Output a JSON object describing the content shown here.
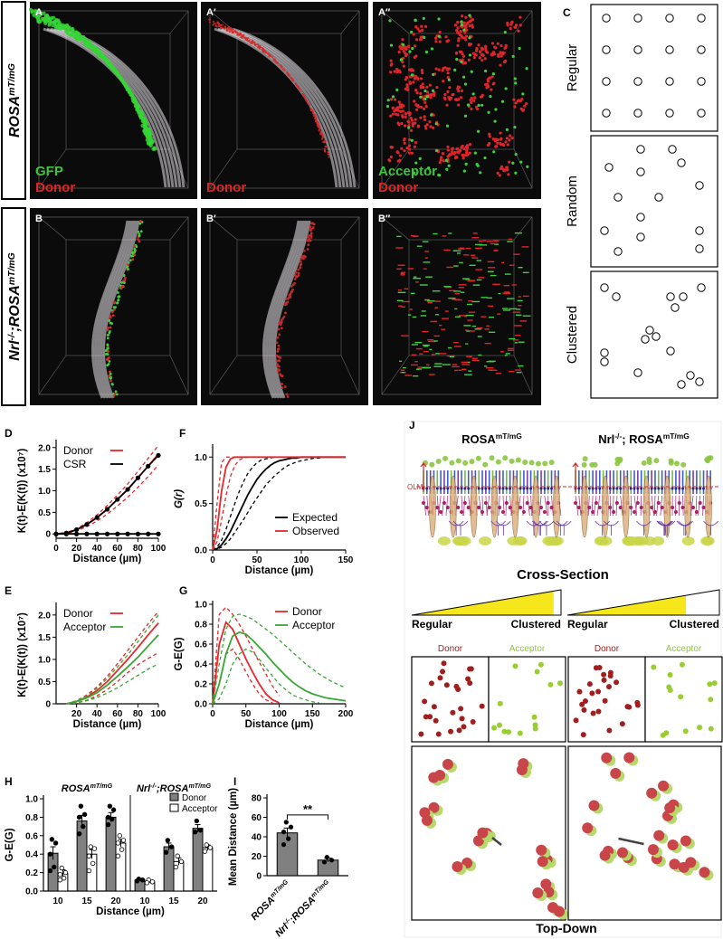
{
  "rows": [
    [
      {
        "text": "ROSA"
      },
      {
        "text": "mT/mG",
        "sup": true
      }
    ],
    [
      {
        "text": "Nrl"
      },
      {
        "text": "-/-",
        "sup": true
      },
      {
        "text": ";ROSA"
      },
      {
        "text": "mT/mG",
        "sup": true
      }
    ]
  ],
  "images": [
    {
      "label": "A",
      "texts": [
        {
          "text": "GFP",
          "color": "#3fc43f"
        },
        {
          "text": "Donor",
          "color": "#e02424"
        }
      ]
    },
    {
      "label": "A′",
      "texts": [
        {
          "text": "Donor",
          "color": "#e02424"
        }
      ]
    },
    {
      "label": "A″",
      "texts": [
        {
          "text": "Acceptor",
          "color": "#3fc43f"
        },
        {
          "text": "Donor",
          "color": "#e02424"
        }
      ]
    },
    {
      "label": "B",
      "texts": []
    },
    {
      "label": "B′",
      "texts": []
    },
    {
      "label": "B″",
      "texts": []
    }
  ],
  "patterns": {
    "label": "C",
    "names": [
      "Regular",
      "Random",
      "Clustered"
    ]
  },
  "chart_data": [
    {
      "type": "line",
      "label": "D",
      "xlabel": "Distance (µm)",
      "ylabel": "K(t)-E(K(t)) (x10⁷)",
      "x": [
        0,
        10,
        20,
        30,
        40,
        50,
        60,
        70,
        80,
        90,
        100
      ],
      "xlim": [
        0,
        100
      ],
      "xticks": [
        0,
        20,
        40,
        60,
        80,
        100
      ],
      "ylim": [
        -0.1,
        2.1
      ],
      "yticks": [
        0,
        0.5,
        {
          "value": 1,
          "label": "1.0"
        },
        1.5,
        {
          "value": 2,
          "label": "2.0"
        }
      ],
      "legend": "upper left",
      "series": [
        {
          "name": "Donor",
          "color": "#e8262b",
          "values": [
            0,
            0.02,
            0.1,
            0.22,
            0.38,
            0.57,
            0.8,
            1.03,
            1.3,
            1.57,
            1.85
          ]
        },
        {
          "color": "#e8262b",
          "dash": true,
          "values": [
            0,
            0.03,
            0.12,
            0.26,
            0.44,
            0.66,
            0.9,
            1.16,
            1.45,
            1.75,
            2.05
          ]
        },
        {
          "color": "#e8262b",
          "dash": true,
          "values": [
            0,
            0.01,
            0.07,
            0.17,
            0.3,
            0.46,
            0.65,
            0.85,
            1.08,
            1.33,
            1.6
          ]
        },
        {
          "name": "CSR",
          "color": "#000000",
          "markers": true,
          "values": [
            0,
            0,
            0,
            0,
            0,
            0,
            0,
            0,
            0,
            0,
            0
          ]
        },
        {
          "color": "#000000",
          "markers": true,
          "values": [
            0,
            0.02,
            0.1,
            0.22,
            0.38,
            0.57,
            0.8,
            1.03,
            1.3,
            1.57,
            1.82
          ]
        }
      ]
    },
    {
      "type": "line",
      "label": "F",
      "xlabel": "Distance (µm)",
      "ylabel": "G(r)",
      "x": [
        0,
        5,
        10,
        15,
        20,
        25,
        30,
        35,
        40,
        45,
        50,
        55,
        60,
        65,
        70,
        75,
        80,
        85,
        90,
        95,
        100,
        105,
        110,
        115,
        120,
        125,
        130,
        135,
        140,
        145,
        150
      ],
      "xlim": [
        0,
        150
      ],
      "xticks": [
        0,
        50,
        100,
        150
      ],
      "ylim": [
        0,
        1.1
      ],
      "yticks": [
        {
          "value": 0,
          "label": "0.0"
        },
        0.5,
        {
          "value": 1,
          "label": "1.0"
        }
      ],
      "legend": "lower right",
      "series": [
        {
          "name": "Expected",
          "color": "#000000",
          "values": [
            0,
            0.014,
            0.055,
            0.12,
            0.2,
            0.3,
            0.4,
            0.5,
            0.6,
            0.68,
            0.76,
            0.82,
            0.87,
            0.91,
            0.94,
            0.96,
            0.97,
            0.98,
            0.99,
            0.99,
            1,
            1,
            1,
            1,
            1,
            1,
            1,
            1,
            1,
            1,
            1
          ]
        },
        {
          "color": "#000000",
          "dash": true,
          "values": [
            0,
            0.03,
            0.105,
            0.22,
            0.36,
            0.5,
            0.63,
            0.74,
            0.83,
            0.89,
            0.94,
            0.97,
            0.98,
            0.99,
            1,
            1,
            1,
            1,
            1,
            1,
            1,
            1,
            1,
            1,
            1,
            1,
            1,
            1,
            1,
            1,
            1
          ]
        },
        {
          "color": "#000000",
          "dash": true,
          "values": [
            0,
            0.008,
            0.03,
            0.07,
            0.12,
            0.19,
            0.26,
            0.33,
            0.41,
            0.49,
            0.56,
            0.63,
            0.7,
            0.75,
            0.8,
            0.84,
            0.88,
            0.91,
            0.93,
            0.95,
            0.96,
            0.97,
            0.98,
            0.99,
            0.99,
            1,
            1,
            1,
            1,
            1,
            1
          ]
        },
        {
          "name": "Observed",
          "color": "#e8262b",
          "values": [
            0,
            0.22,
            0.63,
            0.89,
            0.98,
            1,
            1,
            1,
            1,
            1,
            1,
            1,
            1,
            1,
            1,
            1,
            1,
            1,
            1,
            1,
            1,
            1,
            1,
            1,
            1,
            1,
            1,
            1,
            1,
            1,
            1
          ]
        },
        {
          "color": "#e8262b",
          "dash": true,
          "values": [
            0,
            0.5,
            0.94,
            1,
            1,
            1,
            1,
            1,
            1,
            1,
            1,
            1,
            1,
            1,
            1,
            1,
            1,
            1,
            1,
            1,
            1,
            1,
            1,
            1,
            1,
            1,
            1,
            1,
            1,
            1,
            1
          ]
        },
        {
          "color": "#e8262b",
          "dash": true,
          "values": [
            0,
            0.09,
            0.32,
            0.58,
            0.79,
            0.91,
            0.97,
            0.99,
            1,
            1,
            1,
            1,
            1,
            1,
            1,
            1,
            1,
            1,
            1,
            1,
            1,
            1,
            1,
            1,
            1,
            1,
            1,
            1,
            1,
            1,
            1
          ]
        }
      ]
    },
    {
      "type": "line",
      "label": "E",
      "xlabel": "Distance (µm)",
      "ylabel": "K(t)-E(K(t)) (x10⁷)",
      "x": [
        10,
        20,
        30,
        40,
        50,
        60,
        70,
        80,
        90,
        100
      ],
      "xlim": [
        0,
        100
      ],
      "xticks": [
        20,
        40,
        60,
        80,
        100
      ],
      "ylim": [
        0,
        2.2
      ],
      "yticks": [
        0,
        0.5,
        {
          "value": 1,
          "label": "1.0"
        },
        1.5,
        {
          "value": 2,
          "label": "2.0"
        }
      ],
      "legend": "upper left",
      "series": [
        {
          "name": "Donor",
          "color": "#e8262b",
          "values": [
            0,
            0.05,
            0.15,
            0.3,
            0.5,
            0.75,
            1.0,
            1.27,
            1.55,
            1.82
          ]
        },
        {
          "color": "#e8262b",
          "dash": true,
          "values": [
            0,
            0.07,
            0.2,
            0.38,
            0.62,
            0.9,
            1.2,
            1.5,
            1.8,
            2.08
          ]
        },
        {
          "color": "#e8262b",
          "dash": true,
          "values": [
            0,
            0.02,
            0.08,
            0.18,
            0.32,
            0.5,
            0.7,
            0.88,
            1.02,
            1.15
          ]
        },
        {
          "name": "Acceptor",
          "color": "#3aa635",
          "values": [
            0,
            0.05,
            0.13,
            0.25,
            0.42,
            0.62,
            0.83,
            1.05,
            1.3,
            1.55
          ]
        },
        {
          "color": "#3aa635",
          "dash": true,
          "values": [
            0,
            0.07,
            0.18,
            0.35,
            0.57,
            0.83,
            1.1,
            1.4,
            1.7,
            2.0
          ]
        },
        {
          "color": "#3aa635",
          "dash": true,
          "values": [
            0,
            0.02,
            0.07,
            0.14,
            0.24,
            0.36,
            0.5,
            0.64,
            0.78,
            0.9
          ]
        }
      ]
    },
    {
      "type": "line",
      "label": "G",
      "xlabel": "Distance (µm)",
      "ylabel": "G-E(G)",
      "x": [
        0,
        10,
        20,
        30,
        40,
        50,
        60,
        70,
        80,
        90,
        100,
        110,
        120,
        130,
        140,
        150,
        160,
        170,
        180,
        190,
        200
      ],
      "xlim": [
        0,
        200
      ],
      "xticks": [
        0,
        50,
        100,
        150,
        200
      ],
      "ylim": [
        0,
        1
      ],
      "yticks": [
        {
          "value": 0,
          "label": "0.0"
        },
        0.2,
        0.4,
        0.6,
        0.8,
        {
          "value": 1,
          "label": "1.0"
        }
      ],
      "legend": "upper right",
      "series": [
        {
          "name": "Donor",
          "color": "#e8262b",
          "values": [
            0,
            0.6,
            0.82,
            0.75,
            0.6,
            0.45,
            0.32,
            0.2,
            0.1,
            0.04,
            0.01,
            null,
            null,
            null,
            null,
            null,
            null,
            null,
            null,
            null,
            null
          ]
        },
        {
          "color": "#e8262b",
          "dash": true,
          "values": [
            0,
            0.9,
            0.97,
            0.9,
            0.8,
            0.68,
            0.55,
            0.42,
            0.3,
            0.18,
            0.08,
            null,
            null,
            null,
            null,
            null,
            null,
            null,
            null,
            null,
            null
          ]
        },
        {
          "color": "#e8262b",
          "dash": true,
          "values": [
            0,
            0.2,
            0.5,
            0.55,
            0.45,
            0.32,
            0.2,
            0.1,
            0.04,
            0.01,
            null,
            null,
            null,
            null,
            null,
            null,
            null,
            null,
            null,
            null,
            null
          ]
        },
        {
          "name": "Acceptor",
          "color": "#3aa635",
          "values": [
            0,
            0.2,
            0.5,
            0.68,
            0.72,
            0.7,
            0.64,
            0.57,
            0.5,
            0.42,
            0.35,
            0.28,
            0.22,
            0.17,
            0.13,
            0.1,
            0.08,
            0.06,
            0.05,
            0.04,
            0.03
          ]
        },
        {
          "color": "#3aa635",
          "dash": true,
          "values": [
            0,
            0.4,
            0.75,
            0.88,
            0.9,
            0.88,
            0.85,
            0.8,
            0.75,
            0.7,
            0.64,
            0.58,
            0.52,
            0.46,
            0.4,
            0.35,
            0.3,
            0.26,
            0.22,
            0.19,
            0.16
          ]
        },
        {
          "color": "#3aa635",
          "dash": true,
          "values": [
            0,
            0.05,
            0.2,
            0.4,
            0.5,
            0.55,
            0.52,
            0.45,
            0.36,
            0.28,
            0.2,
            0.14,
            0.09,
            0.06,
            0.04,
            0.02,
            0.01,
            null,
            null,
            null,
            null
          ]
        }
      ]
    },
    {
      "type": "grouped_bar",
      "label": "H",
      "xlabel": "Distance (µm)",
      "ylabel": "G-E(G)",
      "groups": [
        {
          "label": [
            {
              "text": "ROSA"
            },
            {
              "text": "mT/mG",
              "sup": true
            }
          ],
          "categories": [
            "10",
            "15",
            "20"
          ]
        },
        {
          "label": [
            {
              "text": "Nrl"
            },
            {
              "text": "-/-",
              "sup": true
            },
            {
              "text": ";ROSA"
            },
            {
              "text": "mT/mG",
              "sup": true
            }
          ],
          "categories": [
            "10",
            "15",
            "20"
          ]
        }
      ],
      "ylim": [
        0,
        1
      ],
      "yticks": [
        {
          "value": 0,
          "label": "0.0"
        },
        0.2,
        0.4,
        0.6,
        0.8,
        {
          "value": 1,
          "label": "1.0"
        }
      ],
      "legend": "upper right",
      "series": [
        {
          "name": "Donor",
          "color": "#808080",
          "values": [
            0.41,
            0.76,
            0.8,
            0.12,
            0.48,
            0.68
          ],
          "errors": [
            0.07,
            0.06,
            0.05,
            0.01,
            0.04,
            0.04
          ],
          "points": [
            [
              0.56,
              0.52,
              0.4,
              0.26,
              0.22
            ],
            [
              0.92,
              0.83,
              0.8,
              0.7,
              0.62
            ],
            [
              0.92,
              0.88,
              0.8,
              0.78,
              0.72
            ],
            [
              0.13,
              0.12,
              0.11
            ],
            [
              0.55,
              0.48,
              0.42
            ],
            [
              0.76,
              0.66,
              0.64
            ]
          ]
        },
        {
          "name": "Acceptor",
          "color": "#ffffff",
          "values": [
            0.19,
            0.4,
            0.52,
            0.1,
            0.32,
            0.47
          ],
          "errors": [
            0.04,
            0.05,
            0.04,
            0.01,
            0.04,
            0.03
          ],
          "points": [
            [
              0.25,
              0.2,
              0.18,
              0.14,
              0.12
            ],
            [
              0.48,
              0.46,
              0.38,
              0.3,
              0.22
            ],
            [
              0.6,
              0.55,
              0.52,
              0.45,
              0.38
            ],
            [
              0.12,
              0.1,
              0.09
            ],
            [
              0.38,
              0.32,
              0.26
            ],
            [
              0.5,
              0.47,
              0.43
            ]
          ]
        }
      ]
    },
    {
      "type": "bar",
      "label": "I",
      "ylabel": "Mean Distance (µm)",
      "annotation": "**",
      "categories": [
        [
          {
            "text": "ROSA"
          },
          {
            "text": "mT/mG",
            "sup": true
          }
        ],
        [
          {
            "text": "Nrl"
          },
          {
            "text": "-/-",
            "sup": true
          },
          {
            "text": ";ROSA"
          },
          {
            "text": "mT/mG",
            "sup": true
          }
        ]
      ],
      "ylim": [
        0,
        80
      ],
      "yticks": [
        0,
        20,
        40,
        60,
        80
      ],
      "series": [
        {
          "color": "#808080",
          "values": [
            44,
            16
          ],
          "errors": [
            5,
            2
          ],
          "points": [
            [
              55,
              50,
              45,
              38,
              32
            ],
            [
              19,
              16,
              14
            ]
          ]
        }
      ]
    }
  ],
  "diagram": {
    "label": "J",
    "titles": [
      [
        {
          "text": "ROSA"
        },
        {
          "text": "mT/mG",
          "sup": true
        }
      ],
      [
        {
          "text": "Nrl"
        },
        {
          "text": "-/-",
          "sup": true
        },
        {
          "text": "; ROSA"
        },
        {
          "text": "mT/mG",
          "sup": true
        }
      ]
    ],
    "olm": "OLM",
    "cross_section": "Cross-Section",
    "gradient": {
      "left": "Regular",
      "right": "Clustered"
    },
    "boxes": [
      "Donor",
      "Acceptor"
    ],
    "top_down": "Top-Down"
  }
}
